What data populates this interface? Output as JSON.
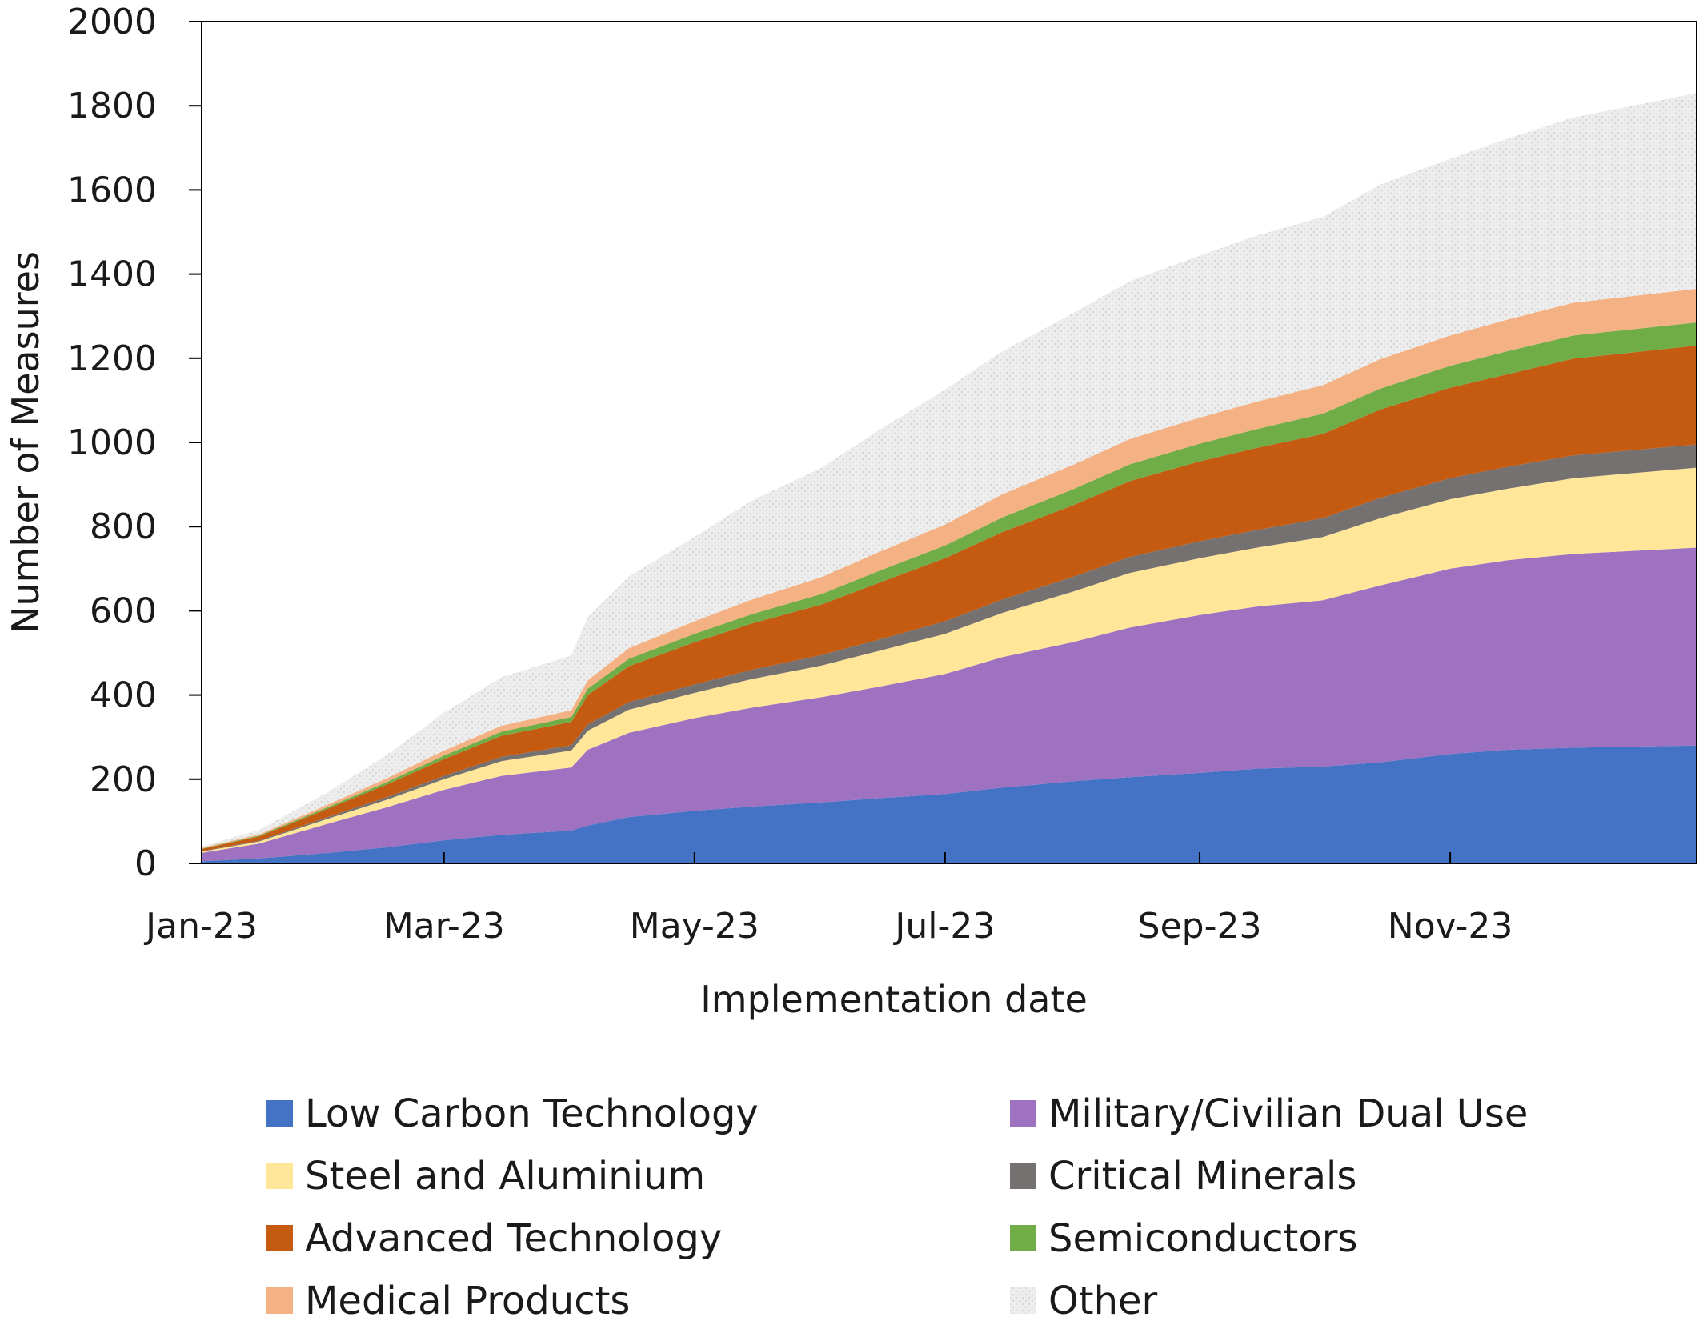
{
  "chart_data": {
    "type": "area",
    "stacked": true,
    "title": "",
    "xlabel": "Implementation date",
    "ylabel": "Number of Measures",
    "ylim": [
      0,
      2000
    ],
    "yticks": [
      "0",
      "200",
      "400",
      "600",
      "800",
      "1000",
      "1200",
      "1400",
      "1600",
      "1800",
      "2000"
    ],
    "xlim": [
      "2023-01-01",
      "2023-12-31"
    ],
    "xticks": [
      {
        "date": "2023-01-01",
        "label": "Jan-23"
      },
      {
        "date": "2023-03-01",
        "label": "Mar-23"
      },
      {
        "date": "2023-05-01",
        "label": "May-23"
      },
      {
        "date": "2023-07-01",
        "label": "Jul-23"
      },
      {
        "date": "2023-09-01",
        "label": "Sep-23"
      },
      {
        "date": "2023-11-01",
        "label": "Nov-23"
      }
    ],
    "legend_position": "bottom",
    "x": [
      "2023-01-01",
      "2023-01-15",
      "2023-02-01",
      "2023-02-15",
      "2023-03-01",
      "2023-03-15",
      "2023-04-01",
      "2023-04-05",
      "2023-04-15",
      "2023-05-01",
      "2023-05-15",
      "2023-06-01",
      "2023-06-15",
      "2023-07-01",
      "2023-07-15",
      "2023-08-01",
      "2023-08-15",
      "2023-09-01",
      "2023-09-15",
      "2023-10-01",
      "2023-10-15",
      "2023-11-01",
      "2023-11-15",
      "2023-12-01",
      "2023-12-31"
    ],
    "series": [
      {
        "name": "Low Carbon Technology",
        "color": "#4472C4",
        "values": [
          5,
          12,
          25,
          38,
          55,
          68,
          78,
          90,
          110,
          125,
          135,
          145,
          155,
          165,
          180,
          195,
          205,
          215,
          225,
          230,
          240,
          260,
          270,
          275,
          280
        ]
      },
      {
        "name": "Military/Civilian Dual Use",
        "color": "#9E72C0",
        "values": [
          20,
          35,
          70,
          95,
          120,
          140,
          150,
          180,
          200,
          220,
          235,
          250,
          265,
          285,
          310,
          330,
          355,
          375,
          385,
          395,
          420,
          440,
          450,
          460,
          470
        ]
      },
      {
        "name": "Steel and Aluminium",
        "color": "#FFE699",
        "values": [
          3,
          5,
          12,
          18,
          25,
          35,
          40,
          45,
          55,
          60,
          68,
          75,
          85,
          95,
          105,
          120,
          130,
          135,
          140,
          150,
          160,
          165,
          170,
          180,
          190
        ]
      },
      {
        "name": "Critical Minerals",
        "color": "#767171",
        "values": [
          1,
          2,
          4,
          6,
          8,
          10,
          13,
          15,
          18,
          20,
          22,
          25,
          27,
          30,
          32,
          35,
          38,
          40,
          42,
          45,
          48,
          50,
          52,
          54,
          55
        ]
      },
      {
        "name": "Advanced Technology",
        "color": "#C55A11",
        "values": [
          5,
          10,
          20,
          30,
          40,
          50,
          55,
          70,
          85,
          100,
          110,
          120,
          135,
          150,
          160,
          170,
          180,
          190,
          195,
          200,
          210,
          215,
          220,
          230,
          235
        ]
      },
      {
        "name": "Semiconductors",
        "color": "#70AD47",
        "values": [
          1,
          2,
          4,
          6,
          8,
          10,
          12,
          15,
          18,
          20,
          22,
          25,
          28,
          30,
          35,
          38,
          40,
          42,
          45,
          48,
          50,
          52,
          55,
          55,
          55
        ]
      },
      {
        "name": "Medical Products",
        "color": "#F4B183",
        "values": [
          2,
          3,
          6,
          9,
          12,
          14,
          16,
          20,
          25,
          30,
          35,
          40,
          45,
          50,
          55,
          58,
          60,
          62,
          65,
          68,
          70,
          72,
          75,
          78,
          80
        ]
      },
      {
        "name": "Other",
        "color": "#EDEDED",
        "values": [
          3,
          10,
          30,
          55,
          90,
          115,
          130,
          150,
          170,
          200,
          235,
          260,
          290,
          320,
          340,
          360,
          375,
          385,
          395,
          400,
          415,
          420,
          430,
          440,
          465
        ]
      }
    ]
  }
}
